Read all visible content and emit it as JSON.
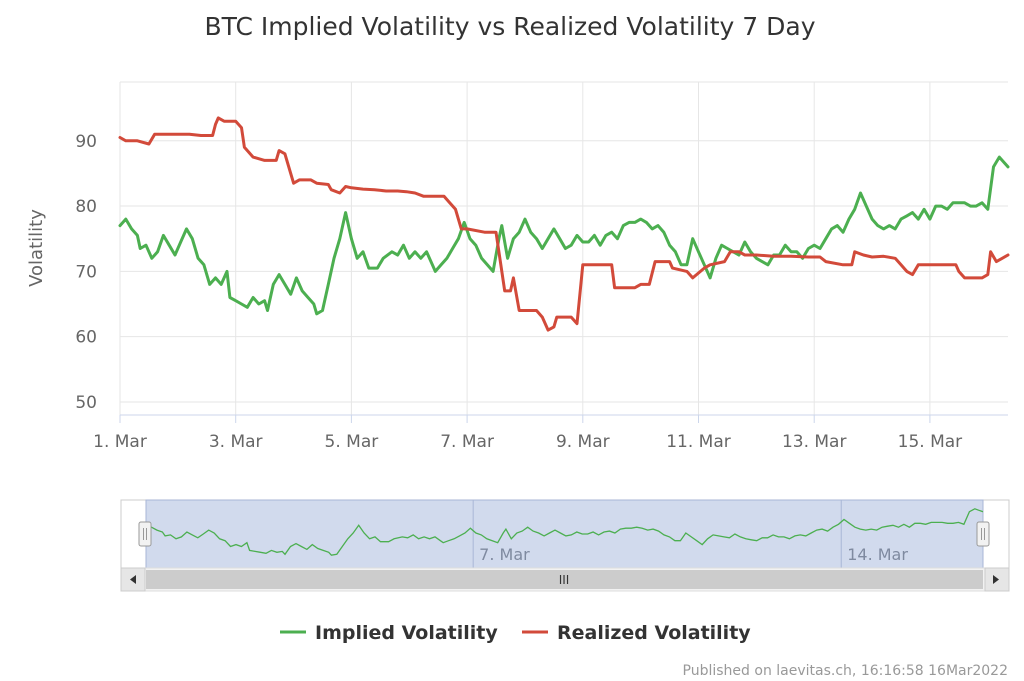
{
  "chart_data": {
    "type": "line",
    "title": "BTC Implied Volatility vs Realized Volatility 7 Day",
    "xlabel": "",
    "ylabel": "Volatility",
    "y_ticks": [
      "50",
      "60",
      "70",
      "80",
      "90"
    ],
    "ylim": [
      48,
      99
    ],
    "xlim": [
      0,
      15.35
    ],
    "x_unit": "days since 1 Mar 2022",
    "x_ticks": [
      {
        "x": 0,
        "label": "1. Mar"
      },
      {
        "x": 2,
        "label": "3. Mar"
      },
      {
        "x": 4,
        "label": "5. Mar"
      },
      {
        "x": 6,
        "label": "7. Mar"
      },
      {
        "x": 8,
        "label": "9. Mar"
      },
      {
        "x": 10,
        "label": "11. Mar"
      },
      {
        "x": 12,
        "label": "13. Mar"
      },
      {
        "x": 14,
        "label": "15. Mar"
      }
    ],
    "grid": true,
    "series": [
      {
        "name": "Implied Volatility",
        "color": "#4caf50",
        "points": [
          [
            0.0,
            77
          ],
          [
            0.1,
            78
          ],
          [
            0.2,
            76.5
          ],
          [
            0.3,
            75.5
          ],
          [
            0.35,
            73.5
          ],
          [
            0.45,
            74
          ],
          [
            0.55,
            72
          ],
          [
            0.65,
            73
          ],
          [
            0.75,
            75.5
          ],
          [
            0.85,
            74
          ],
          [
            0.95,
            72.5
          ],
          [
            1.05,
            74.5
          ],
          [
            1.15,
            76.5
          ],
          [
            1.25,
            75
          ],
          [
            1.35,
            72
          ],
          [
            1.45,
            71
          ],
          [
            1.55,
            68
          ],
          [
            1.65,
            69
          ],
          [
            1.75,
            68
          ],
          [
            1.85,
            70
          ],
          [
            1.9,
            66
          ],
          [
            2.0,
            65.5
          ],
          [
            2.1,
            65
          ],
          [
            2.2,
            64.5
          ],
          [
            2.3,
            66
          ],
          [
            2.4,
            65
          ],
          [
            2.5,
            65.5
          ],
          [
            2.55,
            64
          ],
          [
            2.65,
            68
          ],
          [
            2.75,
            69.5
          ],
          [
            2.85,
            68
          ],
          [
            2.95,
            66.5
          ],
          [
            3.05,
            69
          ],
          [
            3.15,
            67
          ],
          [
            3.25,
            66
          ],
          [
            3.35,
            65
          ],
          [
            3.4,
            63.5
          ],
          [
            3.5,
            64
          ],
          [
            3.6,
            68
          ],
          [
            3.7,
            72
          ],
          [
            3.8,
            75
          ],
          [
            3.9,
            79
          ],
          [
            4.0,
            75
          ],
          [
            4.1,
            72
          ],
          [
            4.2,
            73
          ],
          [
            4.3,
            70.5
          ],
          [
            4.45,
            70.5
          ],
          [
            4.55,
            72
          ],
          [
            4.7,
            73
          ],
          [
            4.8,
            72.5
          ],
          [
            4.9,
            74
          ],
          [
            5.0,
            72
          ],
          [
            5.1,
            73
          ],
          [
            5.2,
            72
          ],
          [
            5.3,
            73
          ],
          [
            5.4,
            71
          ],
          [
            5.45,
            70
          ],
          [
            5.55,
            71
          ],
          [
            5.65,
            72
          ],
          [
            5.75,
            73.5
          ],
          [
            5.85,
            75
          ],
          [
            5.95,
            77.5
          ],
          [
            6.05,
            75
          ],
          [
            6.15,
            74
          ],
          [
            6.25,
            72
          ],
          [
            6.35,
            71
          ],
          [
            6.45,
            70
          ],
          [
            6.55,
            75
          ],
          [
            6.6,
            77
          ],
          [
            6.7,
            72
          ],
          [
            6.8,
            75
          ],
          [
            6.9,
            76
          ],
          [
            7.0,
            78
          ],
          [
            7.1,
            76
          ],
          [
            7.2,
            75
          ],
          [
            7.3,
            73.5
          ],
          [
            7.4,
            75
          ],
          [
            7.5,
            76.5
          ],
          [
            7.6,
            75
          ],
          [
            7.7,
            73.5
          ],
          [
            7.8,
            74
          ],
          [
            7.9,
            75.5
          ],
          [
            8.0,
            74.5
          ],
          [
            8.1,
            74.5
          ],
          [
            8.2,
            75.5
          ],
          [
            8.3,
            74
          ],
          [
            8.4,
            75.5
          ],
          [
            8.5,
            76
          ],
          [
            8.6,
            75
          ],
          [
            8.7,
            77
          ],
          [
            8.8,
            77.5
          ],
          [
            8.9,
            77.5
          ],
          [
            9.0,
            78
          ],
          [
            9.1,
            77.5
          ],
          [
            9.2,
            76.5
          ],
          [
            9.3,
            77
          ],
          [
            9.4,
            76
          ],
          [
            9.5,
            74
          ],
          [
            9.6,
            73
          ],
          [
            9.7,
            71
          ],
          [
            9.8,
            71
          ],
          [
            9.9,
            75
          ],
          [
            10.0,
            73
          ],
          [
            10.1,
            71
          ],
          [
            10.2,
            69
          ],
          [
            10.3,
            72
          ],
          [
            10.4,
            74
          ],
          [
            10.5,
            73.5
          ],
          [
            10.6,
            73
          ],
          [
            10.7,
            72.5
          ],
          [
            10.8,
            74.5
          ],
          [
            10.9,
            73
          ],
          [
            11.0,
            72
          ],
          [
            11.1,
            71.5
          ],
          [
            11.2,
            71
          ],
          [
            11.3,
            72.5
          ],
          [
            11.4,
            72.5
          ],
          [
            11.5,
            74
          ],
          [
            11.6,
            73
          ],
          [
            11.7,
            73
          ],
          [
            11.8,
            72
          ],
          [
            11.9,
            73.5
          ],
          [
            12.0,
            74
          ],
          [
            12.1,
            73.5
          ],
          [
            12.2,
            75
          ],
          [
            12.3,
            76.5
          ],
          [
            12.4,
            77
          ],
          [
            12.5,
            76
          ],
          [
            12.6,
            78
          ],
          [
            12.7,
            79.5
          ],
          [
            12.8,
            82
          ],
          [
            12.9,
            80
          ],
          [
            13.0,
            78
          ],
          [
            13.1,
            77
          ],
          [
            13.2,
            76.5
          ],
          [
            13.3,
            77
          ],
          [
            13.4,
            76.5
          ],
          [
            13.5,
            78
          ],
          [
            13.6,
            78.5
          ],
          [
            13.7,
            79
          ],
          [
            13.8,
            78
          ],
          [
            13.9,
            79.5
          ],
          [
            14.0,
            78
          ],
          [
            14.1,
            80
          ],
          [
            14.2,
            80
          ],
          [
            14.3,
            79.5
          ],
          [
            14.4,
            80.5
          ],
          [
            14.5,
            80.5
          ],
          [
            14.6,
            80.5
          ],
          [
            14.7,
            80
          ],
          [
            14.8,
            80
          ],
          [
            14.9,
            80.5
          ],
          [
            15.0,
            79.5
          ],
          [
            15.1,
            86
          ],
          [
            15.2,
            87.5
          ],
          [
            15.3,
            86.5
          ],
          [
            15.35,
            86
          ]
        ]
      },
      {
        "name": "Realized Volatility",
        "color": "#d24a3a",
        "points": [
          [
            0.0,
            90.5
          ],
          [
            0.1,
            90
          ],
          [
            0.3,
            90
          ],
          [
            0.5,
            89.5
          ],
          [
            0.6,
            91
          ],
          [
            1.0,
            91
          ],
          [
            1.2,
            91
          ],
          [
            1.4,
            90.8
          ],
          [
            1.6,
            90.8
          ],
          [
            1.65,
            92.5
          ],
          [
            1.7,
            93.5
          ],
          [
            1.8,
            93
          ],
          [
            2.0,
            93
          ],
          [
            2.1,
            92
          ],
          [
            2.15,
            89
          ],
          [
            2.3,
            87.5
          ],
          [
            2.5,
            87
          ],
          [
            2.7,
            87
          ],
          [
            2.75,
            88.5
          ],
          [
            2.85,
            88
          ],
          [
            2.95,
            85
          ],
          [
            3.0,
            83.5
          ],
          [
            3.1,
            84
          ],
          [
            3.3,
            84
          ],
          [
            3.4,
            83.5
          ],
          [
            3.6,
            83.3
          ],
          [
            3.65,
            82.5
          ],
          [
            3.8,
            82
          ],
          [
            3.9,
            83
          ],
          [
            4.0,
            82.8
          ],
          [
            4.2,
            82.6
          ],
          [
            4.4,
            82.5
          ],
          [
            4.6,
            82.3
          ],
          [
            4.8,
            82.3
          ],
          [
            4.95,
            82.2
          ],
          [
            5.1,
            82
          ],
          [
            5.25,
            81.5
          ],
          [
            5.4,
            81.5
          ],
          [
            5.6,
            81.5
          ],
          [
            5.7,
            80.5
          ],
          [
            5.8,
            79.5
          ],
          [
            5.9,
            76.5
          ],
          [
            6.0,
            76.5
          ],
          [
            6.3,
            76
          ],
          [
            6.5,
            76
          ],
          [
            6.65,
            67
          ],
          [
            6.75,
            67
          ],
          [
            6.8,
            69
          ],
          [
            6.9,
            64
          ],
          [
            7.0,
            64
          ],
          [
            7.2,
            64
          ],
          [
            7.3,
            63
          ],
          [
            7.4,
            61
          ],
          [
            7.5,
            61.5
          ],
          [
            7.55,
            63
          ],
          [
            7.8,
            63
          ],
          [
            7.9,
            62
          ],
          [
            8.0,
            71
          ],
          [
            8.3,
            71
          ],
          [
            8.5,
            71
          ],
          [
            8.55,
            67.5
          ],
          [
            8.7,
            67.5
          ],
          [
            8.9,
            67.5
          ],
          [
            9.0,
            68
          ],
          [
            9.15,
            68
          ],
          [
            9.25,
            71.5
          ],
          [
            9.5,
            71.5
          ],
          [
            9.55,
            70.5
          ],
          [
            9.8,
            70
          ],
          [
            9.9,
            69
          ],
          [
            10.1,
            70.5
          ],
          [
            10.2,
            71
          ],
          [
            10.45,
            71.5
          ],
          [
            10.55,
            73
          ],
          [
            10.7,
            73
          ],
          [
            10.8,
            72.5
          ],
          [
            11.0,
            72.5
          ],
          [
            11.3,
            72.3
          ],
          [
            11.6,
            72.3
          ],
          [
            11.9,
            72.2
          ],
          [
            12.1,
            72.2
          ],
          [
            12.2,
            71.5
          ],
          [
            12.5,
            71
          ],
          [
            12.65,
            71
          ],
          [
            12.7,
            73
          ],
          [
            12.85,
            72.5
          ],
          [
            13.0,
            72.2
          ],
          [
            13.2,
            72.3
          ],
          [
            13.4,
            72
          ],
          [
            13.5,
            71
          ],
          [
            13.6,
            70
          ],
          [
            13.7,
            69.5
          ],
          [
            13.8,
            71
          ],
          [
            14.1,
            71
          ],
          [
            14.2,
            71
          ],
          [
            14.3,
            71
          ],
          [
            14.45,
            71
          ],
          [
            14.5,
            70
          ],
          [
            14.6,
            69
          ],
          [
            14.9,
            69
          ],
          [
            15.0,
            69.5
          ],
          [
            15.05,
            73
          ],
          [
            15.15,
            71.5
          ],
          [
            15.25,
            72
          ],
          [
            15.35,
            72.5
          ]
        ]
      }
    ],
    "navigator": {
      "labels": [
        {
          "x": 6,
          "label": "7. Mar"
        },
        {
          "x": 12.75,
          "label": "14. Mar"
        }
      ],
      "scrollbar_grip": "III"
    },
    "legend": {
      "position": "bottom-center",
      "items": [
        "Implied Volatility",
        "Realized Volatility"
      ]
    },
    "credit": "Published on laevitas.ch, 16:16:58 16Mar2022"
  }
}
